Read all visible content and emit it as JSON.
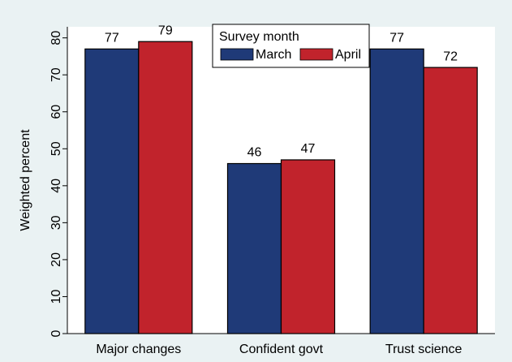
{
  "chart_data": {
    "type": "bar",
    "ylabel": "Weighted percent",
    "categories": [
      "Major changes",
      "Confident govt",
      "Trust science"
    ],
    "series": [
      {
        "name": "March",
        "color": "#1f3a78",
        "values": [
          77,
          46,
          77
        ]
      },
      {
        "name": "April",
        "color": "#c1232c",
        "values": [
          79,
          47,
          72
        ]
      }
    ],
    "ylim": [
      0,
      83
    ],
    "yticks": [
      0,
      10,
      20,
      30,
      40,
      50,
      60,
      70,
      80
    ],
    "legend": {
      "title": "Survey month",
      "position": "top"
    },
    "value_labels_shown": true
  }
}
